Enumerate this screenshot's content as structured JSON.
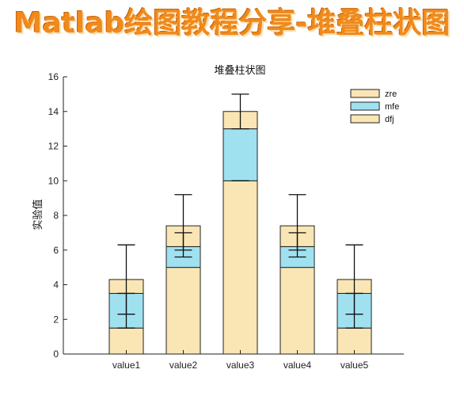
{
  "banner": {
    "text": "Matlab绘图教程分享-堆叠柱状图"
  },
  "chart_data": {
    "type": "bar",
    "stacked": true,
    "title": "堆叠柱状图",
    "xlabel": "",
    "ylabel": "实验值",
    "categories": [
      "value1",
      "value2",
      "value3",
      "value4",
      "value5"
    ],
    "ylim": [
      0,
      16
    ],
    "yticks": [
      0,
      2,
      4,
      6,
      8,
      10,
      12,
      14,
      16
    ],
    "series": [
      {
        "name": "dfj",
        "color": "#fae6b4",
        "values": [
          1.5,
          5,
          10,
          5,
          1.5
        ]
      },
      {
        "name": "mfe",
        "color": "#a0e1f0",
        "values": [
          2,
          1.2,
          3,
          1.2,
          2
        ]
      },
      {
        "name": "zre",
        "color": "#fae6b4",
        "values": [
          0.8,
          1.2,
          1,
          1.2,
          0.8
        ]
      }
    ],
    "error_bars": [
      {
        "center": 2.5,
        "err": 1
      },
      {
        "center": 6.5,
        "err": 0.5
      },
      {
        "center": 10,
        "err": 0
      },
      {
        "center": 6.5,
        "err": 0.5
      },
      {
        "center": 2.5,
        "err": 1
      },
      {
        "center": 4.3,
        "err": 2
      },
      {
        "center": 7.4,
        "err": 1.8
      },
      {
        "center": 14,
        "err": 1
      },
      {
        "center": 7.4,
        "err": 1.8
      },
      {
        "center": 4.3,
        "err": 2
      }
    ],
    "legend_order": [
      "zre",
      "mfe",
      "dfj"
    ],
    "legend_position": "top-right",
    "grid": false
  }
}
